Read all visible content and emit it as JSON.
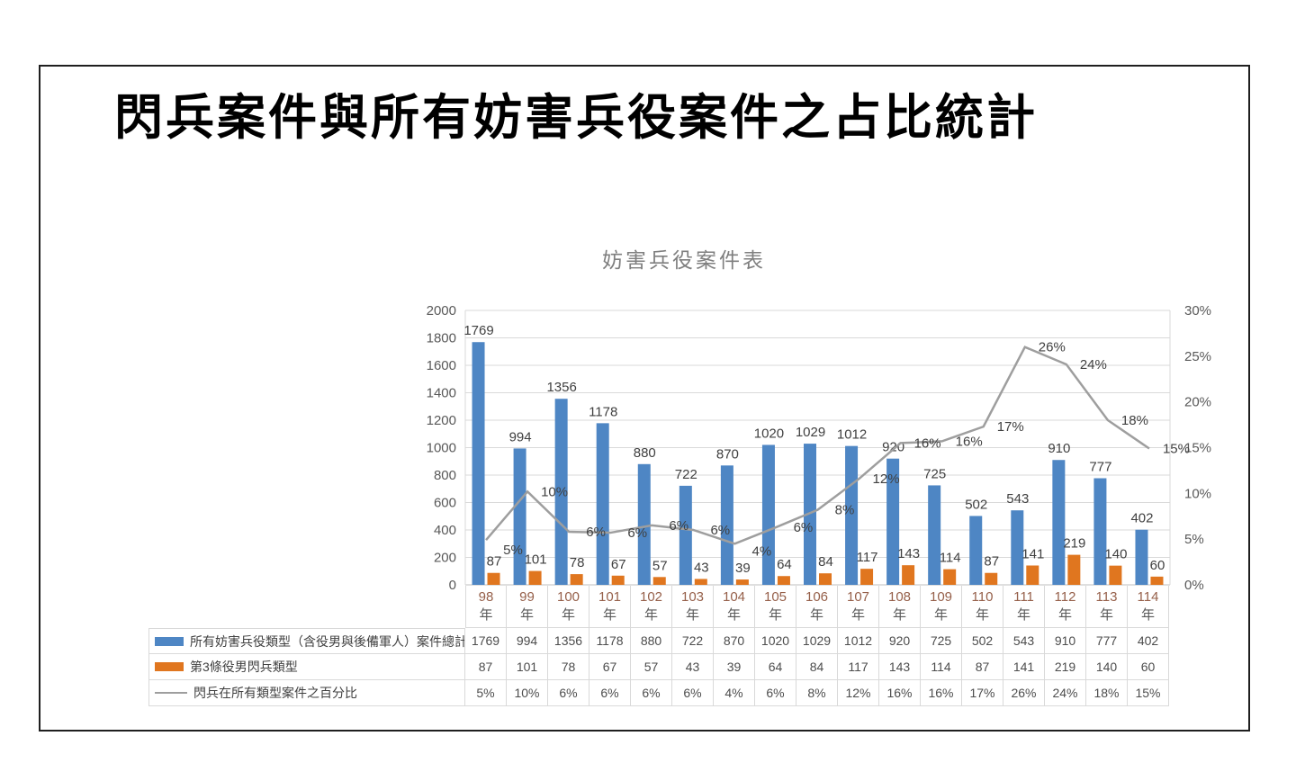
{
  "slide": {
    "title": "閃兵案件與所有妨害兵役案件之占比統計"
  },
  "chart_data": {
    "type": "combo",
    "title": "妨害兵役案件表",
    "categories": [
      "98年",
      "99年",
      "100年",
      "101年",
      "102年",
      "103年",
      "104年",
      "105年",
      "106年",
      "107年",
      "108年",
      "109年",
      "110年",
      "111年",
      "112年",
      "113年",
      "114年"
    ],
    "series": [
      {
        "name": "所有妨害兵役類型（含役男與後備軍人）案件總計",
        "type": "bar",
        "axis": "left",
        "color": "#4e86c4",
        "values": [
          1769,
          994,
          1356,
          1178,
          880,
          722,
          870,
          1020,
          1029,
          1012,
          920,
          725,
          502,
          543,
          910,
          777,
          402
        ]
      },
      {
        "name": "第3條役男閃兵類型",
        "type": "bar",
        "axis": "left",
        "color": "#e0761f",
        "values": [
          87,
          101,
          78,
          67,
          57,
          43,
          39,
          64,
          84,
          117,
          143,
          114,
          87,
          141,
          219,
          140,
          60
        ]
      },
      {
        "name": "閃兵在所有類型案件之百分比",
        "type": "line",
        "axis": "right",
        "color": "#9e9e9e",
        "values_percent": [
          4.9,
          10.2,
          5.8,
          5.7,
          6.5,
          6.0,
          4.5,
          6.3,
          8.2,
          11.6,
          15.5,
          15.7,
          17.3,
          26.0,
          24.1,
          18.0,
          14.9
        ],
        "labels": [
          "5%",
          "10%",
          "6%",
          "6%",
          "6%",
          "6%",
          "4%",
          "6%",
          "8%",
          "12%",
          "16%",
          "16%",
          "17%",
          "26%",
          "24%",
          "18%",
          "15%"
        ]
      }
    ],
    "axes": {
      "left": {
        "min": 0,
        "max": 2000,
        "ticks": [
          "2000",
          "1800",
          "1600",
          "1400",
          "1200",
          "1000",
          "800",
          "600",
          "400",
          "200",
          "0"
        ]
      },
      "right": {
        "min": 0,
        "max": 30,
        "ticks": [
          "30%",
          "25%",
          "20%",
          "15%",
          "10%",
          "5%",
          "0%"
        ]
      }
    },
    "grid": true,
    "legend_position": "table-left",
    "colors": {
      "grid": "#d9d9d9",
      "axis_line": "#bfbfbf",
      "axis_text": "#595959",
      "data_label": "#404040",
      "title": "#7f7f7f",
      "year_number": "#96604a",
      "table_border": "#d9d9d9",
      "table_text": "#4d4d4d"
    }
  }
}
